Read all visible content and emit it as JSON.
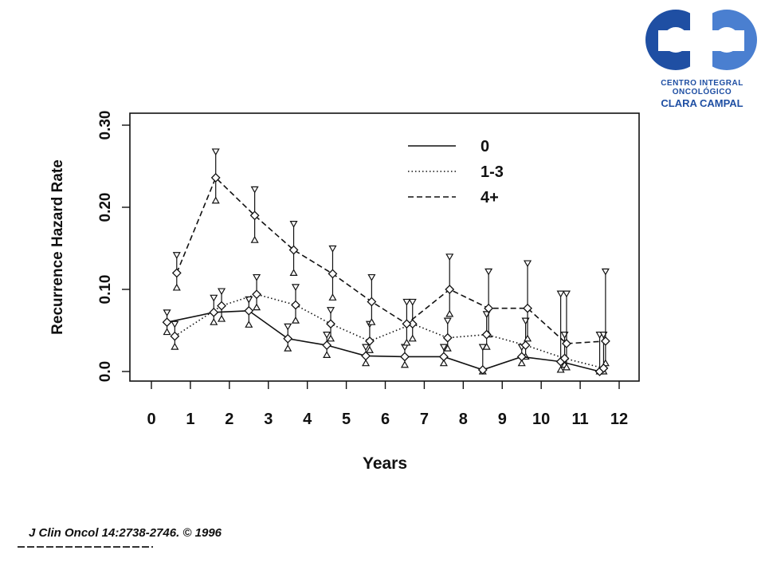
{
  "logo": {
    "line1": "CENTRO INTEGRAL",
    "line2": "ONCOLÓGICO",
    "line3": "CLARA CAMPAL",
    "colors": {
      "primary": "#1f4fa3",
      "secondary": "#4a7fd0"
    }
  },
  "citation": "J Clin Oncol 14:2738-2746. © 1996",
  "chart_data": {
    "type": "line",
    "title": "",
    "xlabel": "Years",
    "ylabel": "Recurrence Hazard Rate",
    "xlim": [
      0,
      12
    ],
    "ylim": [
      0,
      0.3
    ],
    "x_ticks": [
      0,
      1,
      2,
      3,
      4,
      5,
      6,
      7,
      8,
      9,
      10,
      11,
      12
    ],
    "y_ticks": [
      0.0,
      0.1,
      0.2,
      0.3
    ],
    "y_tick_labels": [
      "0.0",
      "0.10",
      "0.20",
      "0.30"
    ],
    "grid": false,
    "legend_position": "top-right",
    "error_bars": true,
    "series": [
      {
        "name": "0",
        "line_style": "solid",
        "x": [
          0.4,
          1.6,
          2.5,
          3.5,
          4.5,
          5.5,
          6.5,
          7.5,
          8.5,
          9.5,
          10.5,
          11.5
        ],
        "y": [
          0.06,
          0.072,
          0.074,
          0.04,
          0.032,
          0.019,
          0.018,
          0.018,
          0.002,
          0.018,
          0.012,
          0.0
        ],
        "upper": [
          0.072,
          0.09,
          0.088,
          0.055,
          0.045,
          0.03,
          0.03,
          0.03,
          0.03,
          0.03,
          0.095,
          0.045
        ],
        "lower": [
          0.048,
          0.06,
          0.057,
          0.028,
          0.02,
          0.01,
          0.008,
          0.01,
          0.0,
          0.01,
          0.002,
          0.0
        ]
      },
      {
        "name": "1-3",
        "line_style": "dotted",
        "x": [
          0.6,
          1.8,
          2.7,
          3.7,
          4.6,
          5.6,
          6.7,
          7.6,
          8.6,
          9.6,
          10.6,
          11.6
        ],
        "y": [
          0.043,
          0.08,
          0.094,
          0.081,
          0.058,
          0.037,
          0.058,
          0.041,
          0.045,
          0.032,
          0.016,
          0.004
        ],
        "upper": [
          0.058,
          0.098,
          0.115,
          0.103,
          0.075,
          0.058,
          0.085,
          0.062,
          0.07,
          0.062,
          0.045,
          0.045
        ],
        "lower": [
          0.03,
          0.064,
          0.078,
          0.062,
          0.04,
          0.026,
          0.04,
          0.028,
          0.03,
          0.018,
          0.008,
          0.0
        ]
      },
      {
        "name": "4+",
        "line_style": "dashed",
        "x": [
          0.65,
          1.65,
          2.65,
          3.65,
          4.65,
          5.65,
          6.55,
          7.65,
          8.65,
          9.65,
          10.65,
          11.65
        ],
        "y": [
          0.12,
          0.236,
          0.19,
          0.148,
          0.119,
          0.085,
          0.058,
          0.1,
          0.077,
          0.077,
          0.034,
          0.037
        ],
        "upper": [
          0.142,
          0.268,
          0.222,
          0.18,
          0.15,
          0.115,
          0.085,
          0.14,
          0.122,
          0.132,
          0.095,
          0.122
        ],
        "lower": [
          0.102,
          0.208,
          0.16,
          0.12,
          0.09,
          0.06,
          0.035,
          0.07,
          0.045,
          0.04,
          0.005,
          0.01
        ]
      }
    ]
  }
}
